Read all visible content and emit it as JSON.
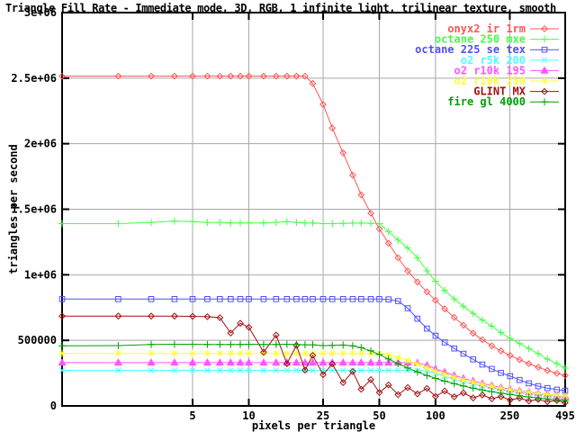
{
  "chart_data": {
    "type": "line",
    "title": "Triangle Fill Rate - Immediate mode, 3D, RGB, 1 infinite light, trilinear texture, smooth",
    "xlabel": "pixels per triangle",
    "ylabel": "triangles per second",
    "x_scale": "log",
    "x_range": [
      1,
      495
    ],
    "y_range": [
      0,
      3000000
    ],
    "x_ticks": [
      5,
      10,
      25,
      50,
      100,
      250,
      495
    ],
    "y_ticks": [
      {
        "value": 0,
        "label": "0"
      },
      {
        "value": 500000,
        "label": "500000"
      },
      {
        "value": 1000000,
        "label": "1e+06"
      },
      {
        "value": 1500000,
        "label": "1.5e+06"
      },
      {
        "value": 2000000,
        "label": "2e+06"
      },
      {
        "value": 2500000,
        "label": "2.5e+06"
      },
      {
        "value": 3000000,
        "label": "3e+06"
      }
    ],
    "grid": true,
    "grid_color": "#a8a8a8",
    "axis_color": "#000000",
    "legend_position": "top-right-inside",
    "x": [
      1,
      2,
      3,
      4,
      5,
      6,
      7,
      8,
      9,
      10,
      12,
      14,
      16,
      18,
      20,
      22,
      25,
      28,
      32,
      36,
      40,
      45,
      50,
      56,
      63,
      71,
      80,
      90,
      100,
      112,
      126,
      141,
      159,
      178,
      200,
      224,
      251,
      282,
      316,
      355,
      398,
      447,
      495
    ],
    "series": [
      {
        "name": "onyx2 ir 1rm",
        "color": "#ff5555",
        "marker": "diamond",
        "values": [
          2515000,
          2515000,
          2515000,
          2515000,
          2515000,
          2515000,
          2515000,
          2515000,
          2515000,
          2515000,
          2515000,
          2515000,
          2515000,
          2515000,
          2515000,
          2460000,
          2300000,
          2120000,
          1930000,
          1760000,
          1610000,
          1470000,
          1350000,
          1240000,
          1130000,
          1030000,
          945000,
          870000,
          805000,
          740000,
          675000,
          615000,
          555000,
          505000,
          458000,
          420000,
          385000,
          352000,
          322000,
          295000,
          270000,
          248000,
          232000
        ]
      },
      {
        "name": "octane 250 mxe",
        "color": "#44ff44",
        "marker": "plus",
        "values": [
          1390000,
          1390000,
          1400000,
          1410000,
          1405000,
          1400000,
          1400000,
          1395000,
          1395000,
          1395000,
          1395000,
          1400000,
          1405000,
          1400000,
          1395000,
          1395000,
          1390000,
          1390000,
          1392000,
          1394000,
          1394000,
          1393000,
          1390000,
          1330000,
          1265000,
          1205000,
          1130000,
          1030000,
          950000,
          880000,
          815000,
          760000,
          705000,
          655000,
          608000,
          560000,
          515000,
          476000,
          438000,
          398000,
          358000,
          322000,
          288000
        ]
      },
      {
        "name": "octane 225 se tex",
        "color": "#5050ff",
        "marker": "square",
        "values": [
          815000,
          815000,
          815000,
          815000,
          815000,
          815000,
          815000,
          815000,
          815000,
          815000,
          815000,
          815000,
          815000,
          815000,
          815000,
          815000,
          815000,
          815000,
          815000,
          815000,
          815000,
          815000,
          815000,
          812000,
          800000,
          745000,
          665000,
          590000,
          535000,
          485000,
          438000,
          398000,
          355000,
          315000,
          282000,
          252000,
          227000,
          198000,
          172000,
          150000,
          136000,
          124000,
          116000
        ]
      },
      {
        "name": "o2 r5k 200",
        "color": "#50ffff",
        "marker": "x",
        "values": [
          271000,
          271000,
          271000,
          271000,
          271000,
          271000,
          271000,
          271000,
          271000,
          271000,
          271000,
          271000,
          271000,
          271000,
          271000,
          271000,
          271000,
          271000,
          271000,
          271000,
          271000,
          271000,
          271000,
          271000,
          271000,
          271000,
          270000,
          268000,
          248000,
          225000,
          203000,
          184000,
          166000,
          151000,
          137000,
          125000,
          114000,
          104000,
          95000,
          88000,
          81000,
          75000,
          69000
        ]
      },
      {
        "name": "o2 r10k 195",
        "color": "#ff55ff",
        "marker": "triangle",
        "values": [
          330000,
          330000,
          330000,
          330000,
          330000,
          330000,
          330000,
          330000,
          330000,
          330000,
          330000,
          330000,
          330000,
          330000,
          330000,
          330000,
          330000,
          330000,
          330000,
          330000,
          330000,
          330000,
          330000,
          330000,
          330000,
          330000,
          328000,
          310000,
          283000,
          258000,
          233000,
          211000,
          191000,
          172000,
          156000,
          141000,
          128000,
          116000,
          105000,
          96000,
          88000,
          80000,
          73000
        ]
      },
      {
        "name": "o2 r10k 250",
        "color": "#ffff33",
        "marker": "star",
        "values": [
          400000,
          400000,
          400000,
          400000,
          400000,
          400000,
          400000,
          400000,
          400000,
          400000,
          400000,
          400000,
          400000,
          400000,
          400000,
          400000,
          400000,
          400000,
          400000,
          400000,
          400000,
          400000,
          400000,
          390000,
          368000,
          345000,
          318000,
          290000,
          264000,
          240000,
          218000,
          198000,
          180000,
          163000,
          148000,
          134000,
          122000,
          111000,
          101000,
          93000,
          86000,
          80000,
          74000
        ]
      },
      {
        "name": "GLINT MX",
        "color": "#a01010",
        "marker": "diamond",
        "values": [
          685000,
          685000,
          685000,
          685000,
          683000,
          680000,
          673000,
          556000,
          630000,
          600000,
          410000,
          540000,
          322000,
          462000,
          273000,
          385000,
          238000,
          320000,
          178000,
          262000,
          127000,
          200000,
          102000,
          160000,
          86000,
          140000,
          92000,
          133000,
          72000,
          114000,
          69000,
          99000,
          61000,
          84000,
          54000,
          71000,
          46000,
          59000,
          38000,
          49000,
          32000,
          41000,
          25000
        ]
      },
      {
        "name": "fire gl 4000",
        "color": "#00a000",
        "marker": "plus",
        "values": [
          458000,
          460000,
          468000,
          470000,
          470000,
          468000,
          468000,
          468000,
          468000,
          470000,
          468000,
          468000,
          470000,
          468000,
          466000,
          466000,
          460000,
          462000,
          464000,
          458000,
          444000,
          420000,
          392000,
          358000,
          322000,
          290000,
          258000,
          232000,
          210000,
          189000,
          170000,
          152000,
          136000,
          121000,
          108000,
          97000,
          87000,
          77000,
          68000,
          60000,
          53000,
          47000,
          43000
        ]
      }
    ]
  }
}
